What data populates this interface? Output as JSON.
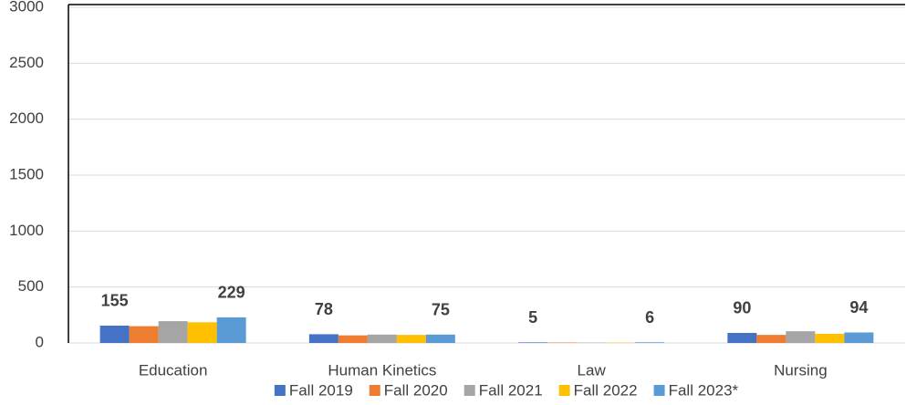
{
  "chart_data": {
    "type": "bar",
    "categories": [
      "Education",
      "Human Kinetics",
      "Law",
      "Nursing"
    ],
    "series": [
      {
        "name": "Fall 2019",
        "color": "#4472c4",
        "values": [
          155,
          78,
          5,
          90
        ],
        "data_labels": true
      },
      {
        "name": "Fall 2020",
        "color": "#ed7d31",
        "values": [
          150,
          68,
          4,
          72
        ],
        "data_labels": false
      },
      {
        "name": "Fall 2021",
        "color": "#a5a5a5",
        "values": [
          195,
          75,
          3,
          105
        ],
        "data_labels": false
      },
      {
        "name": "Fall 2022",
        "color": "#ffc000",
        "values": [
          185,
          72,
          3,
          82
        ],
        "data_labels": false
      },
      {
        "name": "Fall 2023*",
        "color": "#5b9bd5",
        "values": [
          229,
          75,
          6,
          94
        ],
        "data_labels": true
      }
    ],
    "ylim": [
      0,
      3000
    ],
    "yticks": [
      0,
      500,
      1000,
      1500,
      2000,
      2500,
      3000
    ],
    "grid": true,
    "legend": "bottom"
  }
}
